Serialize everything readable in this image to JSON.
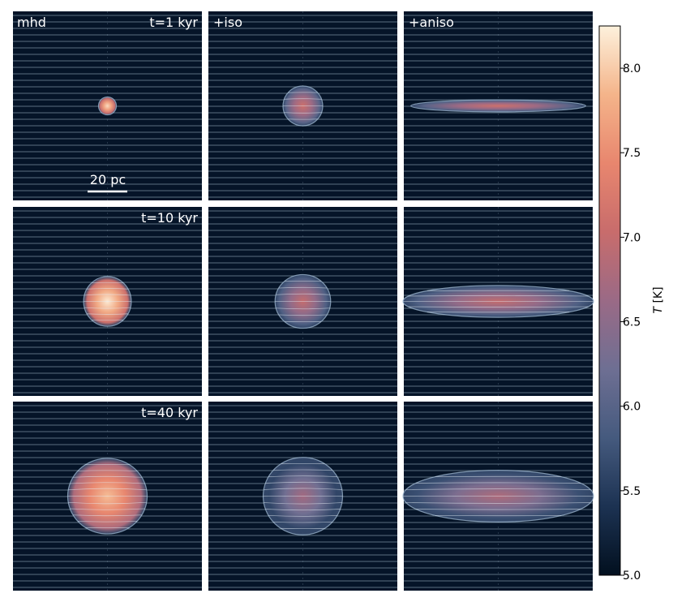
{
  "chart_data": {
    "type": "heatmap",
    "title": "",
    "columns": [
      "mhd",
      "+iso",
      "+aniso"
    ],
    "rows": [
      "t=1 kyr",
      "t=10 kyr",
      "t=40 kyr"
    ],
    "scale_bar": "20 pc",
    "colorbar": {
      "label": "T [K]",
      "range": [
        5.0,
        8.25
      ],
      "ticks": [
        "5.0",
        "5.5",
        "6.0",
        "6.5",
        "7.0",
        "7.5",
        "8.0"
      ],
      "tick_values": [
        5.0,
        5.5,
        6.0,
        6.5,
        7.0,
        7.5,
        8.0
      ]
    },
    "panels": [
      {
        "name": "mhd-t1",
        "row": 0,
        "col": 0,
        "shape": "sphere",
        "rx_pc": 4.5,
        "ry_pc": 4.5,
        "peak_T": 8.1
      },
      {
        "name": "iso-t1",
        "row": 0,
        "col": 1,
        "shape": "sphere",
        "rx_pc": 10,
        "ry_pc": 10,
        "peak_T": 7.1
      },
      {
        "name": "aniso-t1",
        "row": 0,
        "col": 2,
        "shape": "ellipse",
        "rx_pc": 44,
        "ry_pc": 3,
        "peak_T": 7.1
      },
      {
        "name": "mhd-t10",
        "row": 1,
        "col": 0,
        "shape": "sphere",
        "rx_pc": 12,
        "ry_pc": 12.5,
        "peak_T": 8.2
      },
      {
        "name": "iso-t10",
        "row": 1,
        "col": 1,
        "shape": "sphere",
        "rx_pc": 14,
        "ry_pc": 13.5,
        "peak_T": 7.0
      },
      {
        "name": "aniso-t10",
        "row": 1,
        "col": 2,
        "shape": "ellipse",
        "rx_pc": 48,
        "ry_pc": 8,
        "peak_T": 7.0
      },
      {
        "name": "mhd-t40",
        "row": 2,
        "col": 0,
        "shape": "sphere",
        "rx_pc": 20,
        "ry_pc": 19,
        "peak_T": 7.9
      },
      {
        "name": "iso-t40",
        "row": 2,
        "col": 1,
        "shape": "sphere",
        "rx_pc": 20,
        "ry_pc": 19.5,
        "peak_T": 6.7
      },
      {
        "name": "aniso-t40",
        "row": 2,
        "col": 2,
        "shape": "ellipse",
        "rx_pc": 48,
        "ry_pc": 13,
        "peak_T": 6.8
      }
    ]
  },
  "colors": {
    "background": "#051428",
    "field_line": "#9fb6c8",
    "colormap": [
      "#02101f",
      "#1c3252",
      "#455a7e",
      "#6e6f93",
      "#9a6a86",
      "#c86c6c",
      "#e8866e",
      "#f4b48a",
      "#fdf1dc"
    ]
  }
}
